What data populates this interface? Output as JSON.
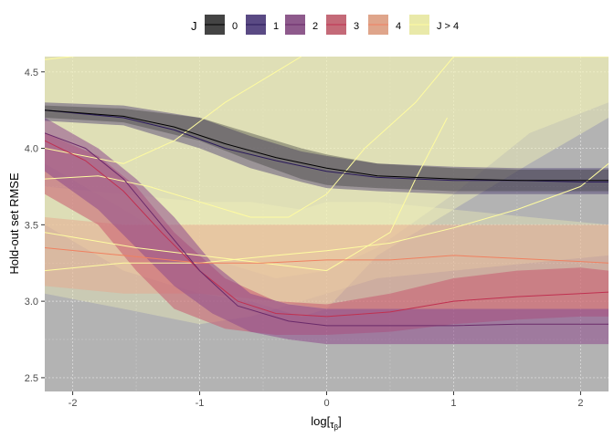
{
  "chart_data": {
    "type": "line",
    "xlabel_main": "log[",
    "xlabel_sub": "τ",
    "xlabel_subsub": "β",
    "xlabel_end": "]",
    "ylabel": "Hold-out set RMSE",
    "xlim": [
      -2.22,
      2.22
    ],
    "ylim": [
      2.41,
      4.6
    ],
    "x_ticks": [
      -2,
      -1,
      0,
      1,
      2
    ],
    "x_tick_labels": [
      "-2",
      "-1",
      "0",
      "1",
      "2"
    ],
    "y_ticks": [
      2.5,
      3.0,
      3.5,
      4.0,
      4.5
    ],
    "y_tick_labels": [
      "2.5",
      "3.0",
      "3.5",
      "4.0",
      "4.5"
    ],
    "grid": true,
    "panel_background": "#b3b3b3",
    "legend": {
      "title": "J",
      "position": "top",
      "entries": [
        {
          "label": "0",
          "fill": "#444444",
          "line": "#000000"
        },
        {
          "label": "1",
          "fill": "#5a4a84",
          "line": "#2a1a5a"
        },
        {
          "label": "2",
          "fill": "#8e5a8c",
          "line": "#6a2a6a"
        },
        {
          "label": "3",
          "fill": "#c46a78",
          "line": "#c03050"
        },
        {
          "label": "4",
          "fill": "#dfa58b",
          "line": "#f08060"
        },
        {
          "label": "J > 4",
          "fill": "#e9e9a9",
          "line": "#fffca0"
        }
      ]
    },
    "series": [
      {
        "name": "J > 4",
        "color_fill": "#f5f5b8",
        "color_line": "#fffca0",
        "bands": [
          {
            "opacity": 0.35,
            "x": [
              -2.22,
              -1.6,
              -1.0,
              -0.6,
              -0.2,
              0.0,
              0.4,
              1.0,
              1.6,
              2.22
            ],
            "lower": [
              3.05,
              2.95,
              2.85,
              2.9,
              3.0,
              3.05,
              3.15,
              3.2,
              3.25,
              3.3
            ],
            "upper": [
              3.75,
              3.7,
              3.65,
              3.65,
              3.6,
              3.65,
              3.65,
              3.6,
              3.55,
              3.5
            ]
          },
          {
            "opacity": 0.45,
            "x": [
              -2.22,
              -1.6,
              -1.0,
              -0.6,
              -0.2,
              0.0,
              0.4,
              1.0,
              1.6,
              2.22
            ],
            "lower": [
              3.5,
              3.2,
              3.05,
              3.0,
              2.9,
              2.95,
              3.3,
              3.6,
              3.9,
              4.2
            ],
            "upper": [
              4.6,
              4.6,
              4.6,
              4.6,
              4.6,
              4.6,
              4.6,
              4.6,
              4.6,
              4.6
            ]
          },
          {
            "opacity": 0.4,
            "x": [
              -2.22,
              -1.6,
              -1.2,
              -0.8,
              -0.4,
              0.0,
              0.4,
              1.0,
              1.6,
              2.22
            ],
            "lower": [
              3.9,
              3.6,
              3.4,
              3.25,
              3.15,
              3.2,
              3.35,
              3.7,
              4.1,
              4.3
            ],
            "upper": [
              4.6,
              4.6,
              4.6,
              4.6,
              4.6,
              4.6,
              4.6,
              4.6,
              4.6,
              4.6
            ]
          }
        ],
        "lines": [
          {
            "x": [
              -2.22,
              -1.8,
              -1.4,
              -1.0,
              -0.6,
              -0.3,
              0.0,
              0.3,
              0.7,
              1.0,
              1.4,
              1.8,
              2.22
            ],
            "y": [
              3.8,
              3.82,
              3.75,
              3.65,
              3.55,
              3.55,
              3.7,
              4.0,
              4.3,
              4.6,
              4.6,
              4.6,
              4.6
            ]
          },
          {
            "x": [
              -2.22,
              -1.8,
              -1.4,
              -1.0,
              -0.6,
              -0.3,
              0.0,
              0.4,
              0.7,
              1.0,
              1.4,
              1.8,
              2.22
            ],
            "y": [
              4.58,
              4.62,
              4.62,
              4.62,
              4.62,
              4.62,
              4.62,
              4.62,
              4.62,
              4.62,
              4.62,
              4.62,
              4.62
            ]
          },
          {
            "x": [
              -2.22,
              -1.6,
              -1.2,
              -0.8,
              -0.4,
              -0.2
            ],
            "y": [
              4.0,
              3.9,
              4.05,
              4.3,
              4.5,
              4.6
            ]
          },
          {
            "x": [
              -2.22,
              -1.5,
              -1.0,
              -0.5,
              0.0,
              0.5,
              0.7,
              0.95
            ],
            "y": [
              3.45,
              3.35,
              3.3,
              3.25,
              3.2,
              3.45,
              3.8,
              4.2
            ]
          },
          {
            "x": [
              -2.22,
              -1.6,
              -1.0,
              -0.4,
              0.0,
              0.5,
              1.0,
              1.5,
              2.0,
              2.22
            ],
            "y": [
              3.2,
              3.25,
              3.25,
              3.3,
              3.33,
              3.38,
              3.48,
              3.6,
              3.75,
              3.9
            ]
          }
        ]
      },
      {
        "name": "4",
        "color_fill": "#e8a88e",
        "color_line": "#f08060",
        "bands": [
          {
            "opacity": 0.5,
            "x": [
              -2.22,
              -1.6,
              -1.0,
              -0.4,
              0.0,
              0.5,
              1.0,
              1.5,
              2.0,
              2.22
            ],
            "lower": [
              3.1,
              3.05,
              3.05,
              3.0,
              2.95,
              2.95,
              2.95,
              2.95,
              2.95,
              2.95
            ],
            "upper": [
              3.55,
              3.5,
              3.5,
              3.5,
              3.5,
              3.5,
              3.5,
              3.5,
              3.5,
              3.5
            ]
          }
        ],
        "lines": [
          {
            "x": [
              -2.22,
              -1.6,
              -1.0,
              -0.5,
              0.0,
              0.5,
              1.0,
              1.5,
              2.0,
              2.22
            ],
            "y": [
              3.35,
              3.3,
              3.25,
              3.25,
              3.27,
              3.27,
              3.3,
              3.28,
              3.26,
              3.25
            ]
          }
        ]
      },
      {
        "name": "3",
        "color_fill": "#c85a70",
        "color_line": "#c03050",
        "bands": [
          {
            "opacity": 0.55,
            "x": [
              -2.22,
              -1.8,
              -1.5,
              -1.2,
              -0.8,
              -0.4,
              0.0,
              0.5,
              1.0,
              1.5,
              2.0,
              2.22
            ],
            "lower": [
              3.7,
              3.5,
              3.2,
              2.95,
              2.82,
              2.78,
              2.78,
              2.8,
              2.85,
              2.88,
              2.9,
              2.9
            ],
            "upper": [
              4.1,
              3.95,
              3.75,
              3.45,
              3.15,
              3.0,
              2.98,
              3.05,
              3.15,
              3.2,
              3.22,
              3.2
            ]
          }
        ],
        "lines": [
          {
            "x": [
              -2.22,
              -1.9,
              -1.6,
              -1.3,
              -1.0,
              -0.7,
              -0.4,
              0.0,
              0.5,
              1.0,
              1.5,
              2.0,
              2.22
            ],
            "y": [
              4.05,
              3.92,
              3.72,
              3.45,
              3.2,
              3.0,
              2.92,
              2.9,
              2.93,
              3.0,
              3.03,
              3.05,
              3.06
            ]
          }
        ]
      },
      {
        "name": "2",
        "color_fill": "#8e4a8c",
        "color_line": "#6a2a6a",
        "bands": [
          {
            "opacity": 0.55,
            "x": [
              -2.22,
              -1.8,
              -1.5,
              -1.2,
              -0.9,
              -0.6,
              -0.3,
              0.0,
              0.5,
              1.0,
              1.5,
              2.0,
              2.22
            ],
            "lower": [
              3.85,
              3.6,
              3.35,
              3.1,
              2.92,
              2.8,
              2.75,
              2.72,
              2.72,
              2.72,
              2.72,
              2.72,
              2.72
            ],
            "upper": [
              4.2,
              4.0,
              3.8,
              3.55,
              3.25,
              3.05,
              2.98,
              2.95,
              2.95,
              2.95,
              2.95,
              2.95,
              2.95
            ]
          }
        ],
        "lines": [
          {
            "x": [
              -2.22,
              -1.9,
              -1.6,
              -1.3,
              -1.0,
              -0.7,
              -0.3,
              0.0,
              0.5,
              1.0,
              1.5,
              2.0,
              2.22
            ],
            "y": [
              4.1,
              4.0,
              3.8,
              3.5,
              3.2,
              2.97,
              2.87,
              2.84,
              2.84,
              2.84,
              2.85,
              2.85,
              2.85
            ]
          }
        ]
      },
      {
        "name": "1",
        "color_fill": "#4a3a70",
        "color_line": "#2a1a5a",
        "bands": [
          {
            "opacity": 0.45,
            "x": [
              -2.22,
              -1.6,
              -1.0,
              -0.6,
              -0.2,
              0.0,
              0.4,
              1.0,
              1.5,
              2.0,
              2.22
            ],
            "lower": [
              4.18,
              4.15,
              4.0,
              3.87,
              3.78,
              3.74,
              3.72,
              3.7,
              3.7,
              3.7,
              3.7
            ],
            "upper": [
              4.3,
              4.28,
              4.2,
              4.08,
              3.98,
              3.95,
              3.9,
              3.88,
              3.87,
              3.87,
              3.87
            ]
          }
        ],
        "lines": [
          {
            "x": [
              -2.22,
              -1.6,
              -1.2,
              -0.8,
              -0.4,
              0.0,
              0.4,
              1.0,
              1.5,
              2.0,
              2.22
            ],
            "y": [
              4.25,
              4.2,
              4.12,
              4.0,
              3.92,
              3.85,
              3.81,
              3.79,
              3.79,
              3.78,
              3.78
            ]
          }
        ]
      },
      {
        "name": "0",
        "color_fill": "#3d3d3d",
        "color_line": "#000000",
        "bands": [
          {
            "opacity": 0.4,
            "x": [
              -2.22,
              -1.6,
              -1.0,
              -0.6,
              -0.2,
              0.0,
              0.4,
              1.0,
              1.5,
              2.0,
              2.22
            ],
            "lower": [
              4.2,
              4.17,
              4.05,
              3.92,
              3.8,
              3.76,
              3.74,
              3.72,
              3.72,
              3.72,
              3.72
            ],
            "upper": [
              4.28,
              4.26,
              4.2,
              4.1,
              4.0,
              3.96,
              3.9,
              3.87,
              3.86,
              3.86,
              3.86
            ]
          }
        ],
        "lines": [
          {
            "x": [
              -2.22,
              -1.6,
              -1.2,
              -0.8,
              -0.4,
              0.0,
              0.4,
              1.0,
              1.5,
              2.0,
              2.22
            ],
            "y": [
              4.25,
              4.21,
              4.14,
              4.03,
              3.94,
              3.87,
              3.82,
              3.8,
              3.79,
              3.79,
              3.79
            ]
          }
        ]
      }
    ]
  }
}
